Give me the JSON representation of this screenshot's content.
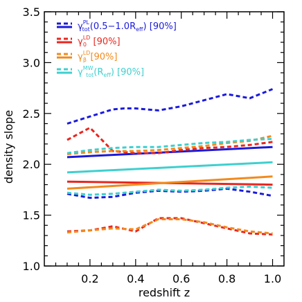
{
  "chart_data": {
    "type": "line",
    "xlabel": "redshift z",
    "ylabel": "density slope",
    "xlim": [
      0.0,
      1.05
    ],
    "ylim": [
      1.0,
      3.5
    ],
    "xticks": [
      0.2,
      0.4,
      0.6,
      0.8,
      1.0
    ],
    "xtick_labels": [
      "0.2",
      "0.4",
      "0.6",
      "0.8",
      "1.0"
    ],
    "yticks": [
      1.0,
      1.5,
      2.0,
      2.5,
      3.0,
      3.5
    ],
    "ytick_labels": [
      "1.0",
      "1.5",
      "2.0",
      "2.5",
      "3.0",
      "3.5"
    ],
    "grid": false,
    "legend_position": "top-left",
    "legend": [
      {
        "id": "pl",
        "base": "γ",
        "sup": "PL",
        "sub": "tot",
        "suffix": "(0.5−1.0R",
        "suffix_sub": "eff",
        "suffix_end": ") [90%]",
        "color": "#1a1adb"
      },
      {
        "id": "ld0",
        "base": "γ",
        "sup": "LD",
        "sub": "0",
        "suffix": " [90%]",
        "suffix_sub": "",
        "suffix_end": "",
        "color": "#e8261e"
      },
      {
        "id": "ldb",
        "base": "γ",
        "sup": "LD",
        "sub": "β",
        "suffix": "[90%]",
        "suffix_sub": "",
        "suffix_end": "",
        "color": "#f28a1c"
      },
      {
        "id": "mw",
        "base": "γ",
        "sup": "MW",
        "sub": "tot",
        "suffix": "(R",
        "suffix_sub": "eff",
        "suffix_end": ") [90%]",
        "color": "#3fcfcf"
      }
    ],
    "series": [
      {
        "id": "pl",
        "color": "#1a1adb",
        "mid": {
          "x": [
            0.1,
            1.0
          ],
          "y": [
            2.07,
            2.17
          ]
        },
        "upper": {
          "x": [
            0.1,
            0.2,
            0.3,
            0.35,
            0.4,
            0.5,
            0.6,
            0.7,
            0.8,
            0.9,
            1.0
          ],
          "y": [
            2.4,
            2.47,
            2.54,
            2.55,
            2.55,
            2.53,
            2.57,
            2.63,
            2.69,
            2.65,
            2.74
          ]
        },
        "lower": {
          "x": [
            0.1,
            0.2,
            0.3,
            0.4,
            0.5,
            0.6,
            0.7,
            0.8,
            0.9,
            1.0
          ],
          "y": [
            1.71,
            1.67,
            1.68,
            1.72,
            1.74,
            1.73,
            1.74,
            1.76,
            1.73,
            1.69
          ]
        }
      },
      {
        "id": "ld0",
        "color": "#e8261e",
        "mid": {
          "x": [
            0.1,
            1.0
          ],
          "y": [
            1.83,
            1.8
          ]
        },
        "upper": {
          "x": [
            0.1,
            0.2,
            0.3,
            0.4,
            0.5,
            0.6,
            0.7,
            0.8,
            0.9,
            1.0
          ],
          "y": [
            2.24,
            2.36,
            2.13,
            2.11,
            2.11,
            2.14,
            2.16,
            2.17,
            2.19,
            2.22
          ]
        },
        "lower": {
          "x": [
            0.1,
            0.2,
            0.3,
            0.4,
            0.5,
            0.6,
            0.7,
            0.8,
            0.9,
            1.0
          ],
          "y": [
            1.34,
            1.35,
            1.39,
            1.34,
            1.47,
            1.47,
            1.42,
            1.37,
            1.32,
            1.31
          ]
        }
      },
      {
        "id": "ldb",
        "color": "#f28a1c",
        "mid": {
          "x": [
            0.1,
            1.0
          ],
          "y": [
            1.76,
            1.88
          ]
        },
        "upper": {
          "x": [
            0.1,
            0.2,
            0.3,
            0.4,
            0.5,
            0.6,
            0.7,
            0.8,
            0.9,
            1.0
          ],
          "y": [
            2.1,
            2.12,
            2.13,
            2.13,
            2.14,
            2.16,
            2.18,
            2.21,
            2.23,
            2.28
          ]
        },
        "lower": {
          "x": [
            0.1,
            0.2,
            0.3,
            0.4,
            0.5,
            0.6,
            0.7,
            0.8,
            0.9,
            1.0
          ],
          "y": [
            1.33,
            1.35,
            1.37,
            1.36,
            1.46,
            1.46,
            1.43,
            1.38,
            1.34,
            1.32
          ]
        }
      },
      {
        "id": "mw",
        "color": "#3fcfcf",
        "mid": {
          "x": [
            0.1,
            1.0
          ],
          "y": [
            1.92,
            2.02
          ]
        },
        "upper": {
          "x": [
            0.1,
            0.2,
            0.3,
            0.4,
            0.5,
            0.6,
            0.7,
            0.8,
            0.9,
            1.0
          ],
          "y": [
            2.11,
            2.14,
            2.16,
            2.17,
            2.17,
            2.19,
            2.21,
            2.22,
            2.24,
            2.25
          ]
        },
        "lower": {
          "x": [
            0.1,
            0.2,
            0.3,
            0.4,
            0.5,
            0.6,
            0.7,
            0.8,
            0.9,
            1.0
          ],
          "y": [
            1.72,
            1.7,
            1.71,
            1.73,
            1.75,
            1.74,
            1.75,
            1.77,
            1.78,
            1.77
          ]
        }
      }
    ]
  }
}
